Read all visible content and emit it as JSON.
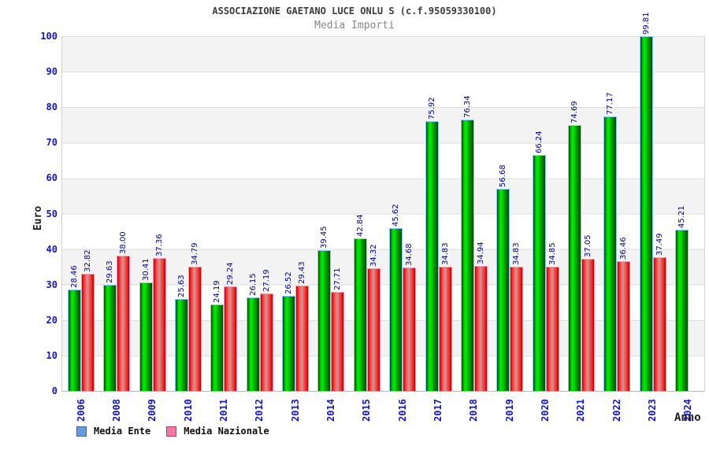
{
  "title": "ASSOCIAZIONE GAETANO LUCE ONLU S (c.f.95059330100)",
  "subtitle": "Media Importi",
  "chart_data": {
    "type": "bar",
    "title": "ASSOCIAZIONE GAETANO LUCE ONLU S (c.f.95059330100)",
    "subtitle": "Media Importi",
    "xlabel": "Anno",
    "ylabel": "Euro",
    "ylim": [
      0,
      100
    ],
    "ytick_step": 10,
    "grid": "horizontal-bands",
    "legend_position": "bottom-left",
    "categories": [
      "2006",
      "2008",
      "2009",
      "2010",
      "2011",
      "2012",
      "2013",
      "2014",
      "2015",
      "2016",
      "2017",
      "2018",
      "2019",
      "2020",
      "2021",
      "2022",
      "2023",
      "2024"
    ],
    "series": [
      {
        "name": "Media Ente",
        "bar_color": "#00cc00",
        "values": [
          28.46,
          29.63,
          30.41,
          25.63,
          24.19,
          26.15,
          26.52,
          39.45,
          42.84,
          45.62,
          75.92,
          76.34,
          56.68,
          66.24,
          74.69,
          77.17,
          99.81,
          45.21
        ]
      },
      {
        "name": "Media Nazionale",
        "bar_color": "#ee3333",
        "values": [
          32.82,
          38.0,
          37.36,
          34.79,
          29.24,
          27.19,
          29.43,
          27.71,
          34.32,
          34.68,
          34.83,
          34.94,
          34.83,
          34.85,
          37.05,
          36.46,
          37.49,
          null
        ]
      }
    ]
  },
  "legend": {
    "items": [
      {
        "label": "Media Ente",
        "swatch_color": "#6699dd"
      },
      {
        "label": "Media Nazionale",
        "swatch_color": "#ee7ba0"
      }
    ]
  },
  "colors": {
    "axis_text": "#1414cc",
    "value_label": "#00008c",
    "title_text": "#3c3c3c",
    "subtitle_text": "#878787",
    "band_gray": "#f3f3f3",
    "grid_line": "#dedede",
    "bar_green_highlight": "#00ef00",
    "bar_red_center": "#db9090",
    "bar_green_border": "#8ccdf5",
    "bar_red_border": "#f3a0bd"
  }
}
